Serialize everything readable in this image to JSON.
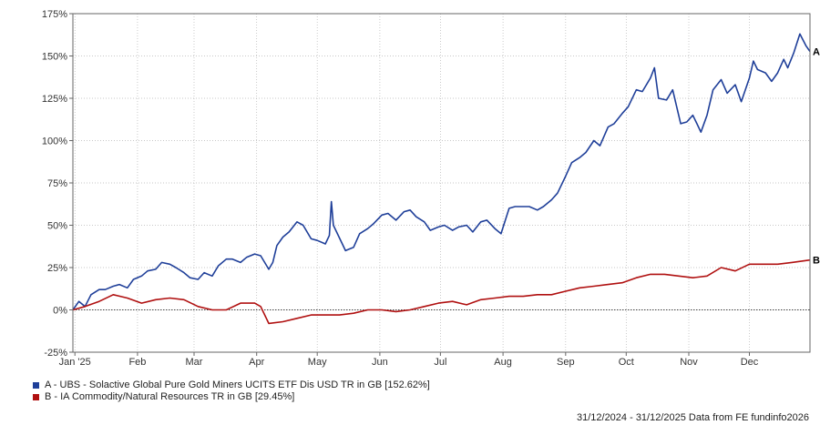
{
  "chart_data": {
    "type": "line",
    "x_range": [
      "31/12/2024",
      "31/12/2025"
    ],
    "x_ticks": [
      {
        "label": "Jan '25",
        "date": "2025-01-01"
      },
      {
        "label": "Feb",
        "date": "2025-02-01"
      },
      {
        "label": "Mar",
        "date": "2025-03-01"
      },
      {
        "label": "Apr",
        "date": "2025-04-01"
      },
      {
        "label": "May",
        "date": "2025-05-01"
      },
      {
        "label": "Jun",
        "date": "2025-06-01"
      },
      {
        "label": "Jul",
        "date": "2025-07-01"
      },
      {
        "label": "Aug",
        "date": "2025-08-01"
      },
      {
        "label": "Sep",
        "date": "2025-09-01"
      },
      {
        "label": "Oct",
        "date": "2025-10-01"
      },
      {
        "label": "Nov",
        "date": "2025-11-01"
      },
      {
        "label": "Dec",
        "date": "2025-12-01"
      }
    ],
    "y_ticks": [
      "175%",
      "150%",
      "125%",
      "100%",
      "75%",
      "50%",
      "25%",
      "0%",
      "-25%"
    ],
    "ylim": [
      -25,
      175
    ],
    "grid": true,
    "series": [
      {
        "name": "A - UBS - Solactive Global Pure Gold Miners UCITS ETF Dis USD TR in GB [152.62%]",
        "end_marker": "A",
        "color": "#1f3f99",
        "points": [
          [
            "2024-12-31",
            0
          ],
          [
            "2025-01-03",
            5
          ],
          [
            "2025-01-06",
            2
          ],
          [
            "2025-01-09",
            9
          ],
          [
            "2025-01-13",
            12
          ],
          [
            "2025-01-16",
            12
          ],
          [
            "2025-01-20",
            14
          ],
          [
            "2025-01-23",
            15
          ],
          [
            "2025-01-27",
            13
          ],
          [
            "2025-01-30",
            18
          ],
          [
            "2025-02-03",
            20
          ],
          [
            "2025-02-06",
            23
          ],
          [
            "2025-02-10",
            24
          ],
          [
            "2025-02-13",
            28
          ],
          [
            "2025-02-17",
            27
          ],
          [
            "2025-02-20",
            25
          ],
          [
            "2025-02-24",
            22
          ],
          [
            "2025-02-27",
            19
          ],
          [
            "2025-03-03",
            18
          ],
          [
            "2025-03-06",
            22
          ],
          [
            "2025-03-10",
            20
          ],
          [
            "2025-03-13",
            26
          ],
          [
            "2025-03-17",
            30
          ],
          [
            "2025-03-20",
            30
          ],
          [
            "2025-03-24",
            28
          ],
          [
            "2025-03-27",
            31
          ],
          [
            "2025-03-31",
            33
          ],
          [
            "2025-04-03",
            32
          ],
          [
            "2025-04-07",
            24
          ],
          [
            "2025-04-09",
            28
          ],
          [
            "2025-04-11",
            38
          ],
          [
            "2025-04-14",
            43
          ],
          [
            "2025-04-17",
            46
          ],
          [
            "2025-04-21",
            52
          ],
          [
            "2025-04-24",
            50
          ],
          [
            "2025-04-28",
            42
          ],
          [
            "2025-05-01",
            41
          ],
          [
            "2025-05-05",
            39
          ],
          [
            "2025-05-07",
            44
          ],
          [
            "2025-05-08",
            64
          ],
          [
            "2025-05-09",
            50
          ],
          [
            "2025-05-13",
            40
          ],
          [
            "2025-05-15",
            35
          ],
          [
            "2025-05-19",
            37
          ],
          [
            "2025-05-22",
            45
          ],
          [
            "2025-05-26",
            48
          ],
          [
            "2025-05-29",
            51
          ],
          [
            "2025-06-02",
            56
          ],
          [
            "2025-06-05",
            57
          ],
          [
            "2025-06-09",
            53
          ],
          [
            "2025-06-13",
            58
          ],
          [
            "2025-06-16",
            59
          ],
          [
            "2025-06-19",
            55
          ],
          [
            "2025-06-23",
            52
          ],
          [
            "2025-06-26",
            47
          ],
          [
            "2025-06-30",
            49
          ],
          [
            "2025-07-03",
            50
          ],
          [
            "2025-07-07",
            47
          ],
          [
            "2025-07-10",
            49
          ],
          [
            "2025-07-14",
            50
          ],
          [
            "2025-07-17",
            46
          ],
          [
            "2025-07-21",
            52
          ],
          [
            "2025-07-24",
            53
          ],
          [
            "2025-07-28",
            48
          ],
          [
            "2025-07-31",
            45
          ],
          [
            "2025-08-04",
            60
          ],
          [
            "2025-08-07",
            61
          ],
          [
            "2025-08-11",
            61
          ],
          [
            "2025-08-14",
            61
          ],
          [
            "2025-08-18",
            59
          ],
          [
            "2025-08-21",
            61
          ],
          [
            "2025-08-25",
            65
          ],
          [
            "2025-08-28",
            69
          ],
          [
            "2025-09-01",
            79
          ],
          [
            "2025-09-04",
            87
          ],
          [
            "2025-09-08",
            90
          ],
          [
            "2025-09-11",
            93
          ],
          [
            "2025-09-15",
            100
          ],
          [
            "2025-09-18",
            97
          ],
          [
            "2025-09-22",
            108
          ],
          [
            "2025-09-25",
            110
          ],
          [
            "2025-09-29",
            116
          ],
          [
            "2025-10-02",
            120
          ],
          [
            "2025-10-06",
            130
          ],
          [
            "2025-10-09",
            129
          ],
          [
            "2025-10-13",
            137
          ],
          [
            "2025-10-15",
            143
          ],
          [
            "2025-10-17",
            125
          ],
          [
            "2025-10-21",
            124
          ],
          [
            "2025-10-24",
            130
          ],
          [
            "2025-10-28",
            110
          ],
          [
            "2025-10-31",
            111
          ],
          [
            "2025-11-03",
            115
          ],
          [
            "2025-11-05",
            110
          ],
          [
            "2025-11-07",
            105
          ],
          [
            "2025-11-10",
            115
          ],
          [
            "2025-11-13",
            130
          ],
          [
            "2025-11-17",
            136
          ],
          [
            "2025-11-20",
            128
          ],
          [
            "2025-11-24",
            133
          ],
          [
            "2025-11-27",
            123
          ],
          [
            "2025-12-01",
            137
          ],
          [
            "2025-12-03",
            147
          ],
          [
            "2025-12-05",
            142
          ],
          [
            "2025-12-09",
            140
          ],
          [
            "2025-12-12",
            135
          ],
          [
            "2025-12-15",
            140
          ],
          [
            "2025-12-18",
            148
          ],
          [
            "2025-12-20",
            143
          ],
          [
            "2025-12-23",
            152
          ],
          [
            "2025-12-26",
            163
          ],
          [
            "2025-12-29",
            156
          ],
          [
            "2025-12-31",
            152.62
          ]
        ]
      },
      {
        "name": "B - IA Commodity/Natural Resources TR in GB [29.45%]",
        "end_marker": "B",
        "color": "#b01010",
        "points": [
          [
            "2024-12-31",
            0
          ],
          [
            "2025-01-06",
            2
          ],
          [
            "2025-01-13",
            5
          ],
          [
            "2025-01-20",
            9
          ],
          [
            "2025-01-27",
            7
          ],
          [
            "2025-02-03",
            4
          ],
          [
            "2025-02-10",
            6
          ],
          [
            "2025-02-17",
            7
          ],
          [
            "2025-02-24",
            6
          ],
          [
            "2025-03-03",
            2
          ],
          [
            "2025-03-10",
            0
          ],
          [
            "2025-03-17",
            0
          ],
          [
            "2025-03-24",
            4
          ],
          [
            "2025-03-31",
            4
          ],
          [
            "2025-04-03",
            2
          ],
          [
            "2025-04-07",
            -8
          ],
          [
            "2025-04-14",
            -7
          ],
          [
            "2025-04-21",
            -5
          ],
          [
            "2025-04-28",
            -3
          ],
          [
            "2025-05-05",
            -3
          ],
          [
            "2025-05-12",
            -3
          ],
          [
            "2025-05-19",
            -2
          ],
          [
            "2025-05-26",
            0
          ],
          [
            "2025-06-02",
            0
          ],
          [
            "2025-06-09",
            -1
          ],
          [
            "2025-06-16",
            0
          ],
          [
            "2025-06-23",
            2
          ],
          [
            "2025-06-30",
            4
          ],
          [
            "2025-07-07",
            5
          ],
          [
            "2025-07-14",
            3
          ],
          [
            "2025-07-21",
            6
          ],
          [
            "2025-07-28",
            7
          ],
          [
            "2025-08-04",
            8
          ],
          [
            "2025-08-11",
            8
          ],
          [
            "2025-08-18",
            9
          ],
          [
            "2025-08-25",
            9
          ],
          [
            "2025-09-01",
            11
          ],
          [
            "2025-09-08",
            13
          ],
          [
            "2025-09-15",
            14
          ],
          [
            "2025-09-22",
            15
          ],
          [
            "2025-09-29",
            16
          ],
          [
            "2025-10-06",
            19
          ],
          [
            "2025-10-13",
            21
          ],
          [
            "2025-10-20",
            21
          ],
          [
            "2025-10-27",
            20
          ],
          [
            "2025-11-03",
            19
          ],
          [
            "2025-11-10",
            20
          ],
          [
            "2025-11-17",
            25
          ],
          [
            "2025-11-24",
            23
          ],
          [
            "2025-12-01",
            27
          ],
          [
            "2025-12-08",
            27
          ],
          [
            "2025-12-15",
            27
          ],
          [
            "2025-12-22",
            28
          ],
          [
            "2025-12-31",
            29.45
          ]
        ]
      }
    ]
  },
  "source": "31/12/2024 - 31/12/2025 Data from FE fundinfo2026"
}
